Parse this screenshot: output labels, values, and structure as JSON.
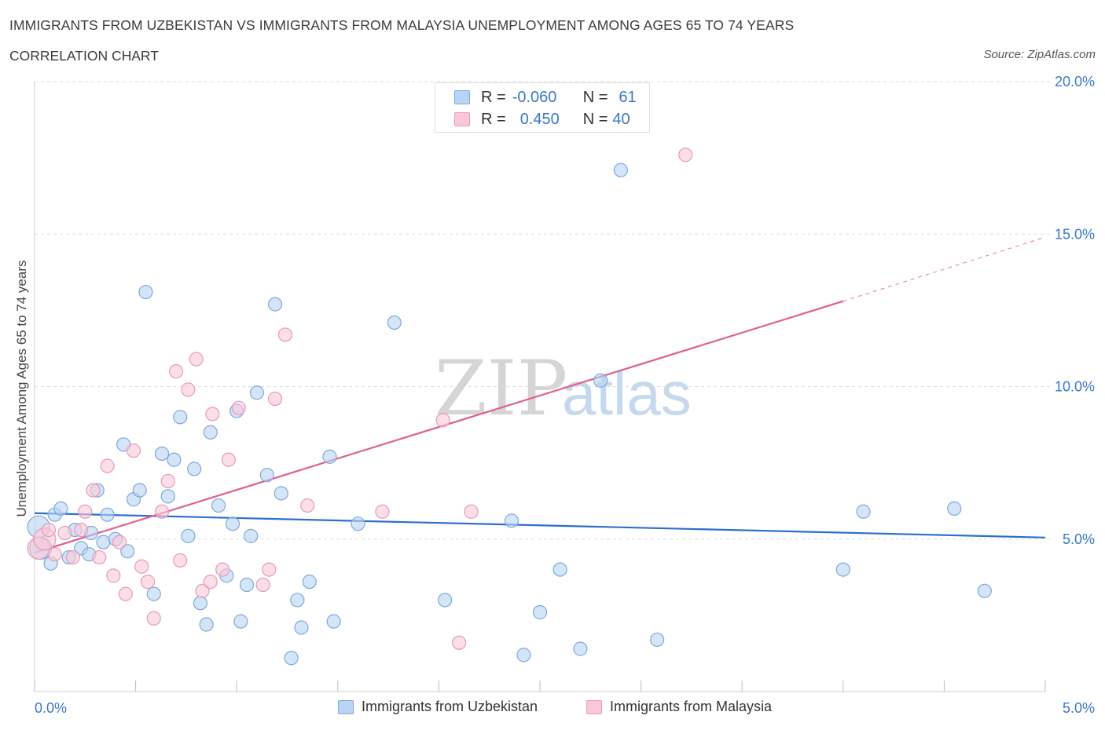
{
  "header": {
    "title": "IMMIGRANTS FROM UZBEKISTAN VS IMMIGRANTS FROM MALAYSIA UNEMPLOYMENT AMONG AGES 65 TO 74 YEARS",
    "subtitle": "CORRELATION CHART",
    "source": "Source: ZipAtlas.com"
  },
  "watermark": {
    "part1": "ZIP",
    "part2": "atlas"
  },
  "legend": {
    "rows": [
      {
        "r_label": "R =",
        "r_value": "-0.060",
        "n_label": "N =",
        "n_value": "61"
      },
      {
        "r_label": "R =",
        "r_value": "0.450",
        "n_label": "N =",
        "n_value": "40"
      }
    ]
  },
  "chart_data": {
    "type": "scatter",
    "title": "IMMIGRANTS FROM UZBEKISTAN VS IMMIGRANTS FROM MALAYSIA UNEMPLOYMENT AMONG AGES 65 TO 74 YEARS",
    "xlabel": "",
    "ylabel": "Unemployment Among Ages 65 to 74 years",
    "xlim": [
      0,
      5
    ],
    "ylim": [
      0,
      20
    ],
    "x_tick_labels": [
      "0.0%",
      "5.0%"
    ],
    "y_ticks": [
      5,
      10,
      15,
      20
    ],
    "y_tick_labels": [
      "5.0%",
      "10.0%",
      "15.0%",
      "20.0%"
    ],
    "grid": true,
    "colors": {
      "uzbekistan_fill": "#b8d3f3",
      "uzbekistan_stroke": "#7ea9dd",
      "uzbekistan_line": "#2d6fcc",
      "malaysia_fill": "#f8c8d8",
      "malaysia_stroke": "#e89ab5",
      "malaysia_line": "#e0608e",
      "axis_label": "#3a78c9"
    },
    "series": [
      {
        "name": "Immigrants from Uzbekistan",
        "trend": {
          "x": [
            0,
            5
          ],
          "y": [
            5.85,
            5.05
          ]
        },
        "points": [
          [
            0.02,
            5.4
          ],
          [
            0.03,
            4.7
          ],
          [
            0.08,
            4.2
          ],
          [
            0.1,
            5.8
          ],
          [
            0.13,
            6.0
          ],
          [
            0.17,
            4.4
          ],
          [
            0.2,
            5.3
          ],
          [
            0.23,
            4.7
          ],
          [
            0.27,
            4.5
          ],
          [
            0.28,
            5.2
          ],
          [
            0.31,
            6.6
          ],
          [
            0.34,
            4.9
          ],
          [
            0.36,
            5.8
          ],
          [
            0.4,
            5.0
          ],
          [
            0.44,
            8.1
          ],
          [
            0.46,
            4.6
          ],
          [
            0.49,
            6.3
          ],
          [
            0.52,
            6.6
          ],
          [
            0.55,
            13.1
          ],
          [
            0.59,
            3.2
          ],
          [
            0.63,
            7.8
          ],
          [
            0.66,
            6.4
          ],
          [
            0.69,
            7.6
          ],
          [
            0.72,
            9.0
          ],
          [
            0.76,
            5.1
          ],
          [
            0.79,
            7.3
          ],
          [
            0.82,
            2.9
          ],
          [
            0.85,
            2.2
          ],
          [
            0.87,
            8.5
          ],
          [
            0.91,
            6.1
          ],
          [
            0.95,
            3.8
          ],
          [
            0.98,
            5.5
          ],
          [
            1.0,
            9.2
          ],
          [
            1.02,
            2.3
          ],
          [
            1.05,
            3.5
          ],
          [
            1.07,
            5.1
          ],
          [
            1.1,
            9.8
          ],
          [
            1.15,
            7.1
          ],
          [
            1.19,
            12.7
          ],
          [
            1.22,
            6.5
          ],
          [
            1.27,
            1.1
          ],
          [
            1.3,
            3.0
          ],
          [
            1.32,
            2.1
          ],
          [
            1.36,
            3.6
          ],
          [
            1.46,
            7.7
          ],
          [
            1.48,
            2.3
          ],
          [
            1.6,
            5.5
          ],
          [
            1.78,
            12.1
          ],
          [
            2.03,
            3.0
          ],
          [
            2.36,
            5.6
          ],
          [
            2.42,
            1.2
          ],
          [
            2.5,
            2.6
          ],
          [
            2.6,
            4.0
          ],
          [
            2.7,
            1.4
          ],
          [
            2.8,
            10.2
          ],
          [
            2.9,
            17.1
          ],
          [
            3.08,
            1.7
          ],
          [
            4.0,
            4.0
          ],
          [
            4.1,
            5.9
          ],
          [
            4.55,
            6.0
          ],
          [
            4.7,
            3.3
          ]
        ]
      },
      {
        "name": "Immigrants from Malaysia",
        "trend": {
          "x": [
            0,
            4.0
          ],
          "y": [
            4.55,
            12.8
          ]
        },
        "trend_extension": {
          "x": [
            4.0,
            5.0
          ],
          "y": [
            12.8,
            14.9
          ]
        },
        "points": [
          [
            0.02,
            4.7
          ],
          [
            0.05,
            5.0
          ],
          [
            0.07,
            5.3
          ],
          [
            0.1,
            4.5
          ],
          [
            0.15,
            5.2
          ],
          [
            0.19,
            4.4
          ],
          [
            0.23,
            5.3
          ],
          [
            0.25,
            5.9
          ],
          [
            0.29,
            6.6
          ],
          [
            0.32,
            4.4
          ],
          [
            0.36,
            7.4
          ],
          [
            0.39,
            3.8
          ],
          [
            0.42,
            4.9
          ],
          [
            0.45,
            3.2
          ],
          [
            0.49,
            7.9
          ],
          [
            0.53,
            4.1
          ],
          [
            0.56,
            3.6
          ],
          [
            0.59,
            2.4
          ],
          [
            0.63,
            5.9
          ],
          [
            0.66,
            6.9
          ],
          [
            0.7,
            10.5
          ],
          [
            0.72,
            4.3
          ],
          [
            0.76,
            9.9
          ],
          [
            0.8,
            10.9
          ],
          [
            0.83,
            3.3
          ],
          [
            0.87,
            3.6
          ],
          [
            0.88,
            9.1
          ],
          [
            0.93,
            4.0
          ],
          [
            0.96,
            7.6
          ],
          [
            1.01,
            9.3
          ],
          [
            1.13,
            3.5
          ],
          [
            1.16,
            4.0
          ],
          [
            1.19,
            9.6
          ],
          [
            1.24,
            11.7
          ],
          [
            1.35,
            6.1
          ],
          [
            1.72,
            5.9
          ],
          [
            2.02,
            8.9
          ],
          [
            2.1,
            1.6
          ],
          [
            2.16,
            5.9
          ],
          [
            3.22,
            17.6
          ]
        ]
      }
    ]
  }
}
